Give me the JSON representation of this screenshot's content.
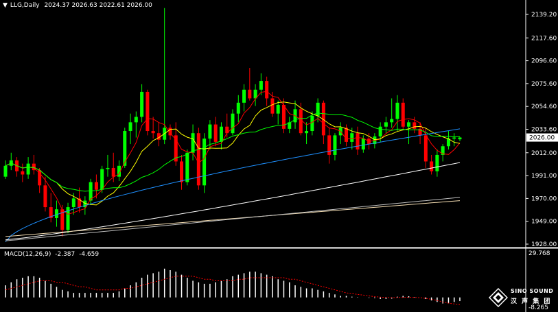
{
  "header": {
    "symbol": "LLG,Daily",
    "ohlc": "2024.37 2026.63 2022.61 2026.00"
  },
  "macd_header": {
    "name": "MACD(12,26,9)",
    "main": "-2.387",
    "signal": "-4.659"
  },
  "price_scale": {
    "ticks": [
      "2139.20",
      "2117.60",
      "2096.60",
      "2075.60",
      "2054.60",
      "2033.60",
      "2012.00",
      "1991.00",
      "1970.00",
      "1949.00",
      "1928.00"
    ],
    "current": "2026.00"
  },
  "macd_scale": {
    "top": "29.768",
    "bottom": "-8.265"
  },
  "logo": {
    "line1": "SINO SOUND",
    "line2": "汉 声 集 团"
  },
  "colors": {
    "up": "#00ff00",
    "down": "#ff0000",
    "ma5": "#ff0000",
    "ma10": "#ffff00",
    "ma20": "#00ff00",
    "ma60": "#1e90ff",
    "ma120": "#ffffff",
    "ma250": "#f5deb3",
    "ma200": "#c0c0c0",
    "background": "#000000"
  },
  "chart_data": {
    "type": "candlestick",
    "ylim": [
      1928,
      2139.2
    ],
    "candles": [
      [
        1990,
        2005,
        1988,
        2000
      ],
      [
        2000,
        2012,
        1996,
        2005
      ],
      [
        2005,
        2008,
        1990,
        1995
      ],
      [
        1995,
        2002,
        1985,
        1992
      ],
      [
        1992,
        2008,
        1988,
        2002
      ],
      [
        2002,
        2010,
        1992,
        1996
      ],
      [
        1996,
        1998,
        1975,
        1982
      ],
      [
        1982,
        1990,
        1958,
        1962
      ],
      [
        1962,
        1975,
        1948,
        1952
      ],
      [
        1952,
        1968,
        1944,
        1960
      ],
      [
        1960,
        1964,
        1935,
        1941
      ],
      [
        1941,
        1966,
        1938,
        1962
      ],
      [
        1962,
        1975,
        1955,
        1970
      ],
      [
        1970,
        1980,
        1957,
        1962
      ],
      [
        1962,
        1972,
        1955,
        1968
      ],
      [
        1968,
        1988,
        1964,
        1985
      ],
      [
        1985,
        1992,
        1970,
        1978
      ],
      [
        1978,
        2000,
        1975,
        1997
      ],
      [
        1997,
        2010,
        1990,
        1998
      ],
      [
        1998,
        2012,
        1985,
        1990
      ],
      [
        1990,
        2005,
        1986,
        2000
      ],
      [
        2000,
        2035,
        1998,
        2032
      ],
      [
        2032,
        2048,
        2020,
        2040
      ],
      [
        2040,
        2050,
        2026,
        2045
      ],
      [
        2045,
        2075,
        2040,
        2068
      ],
      [
        2068,
        2070,
        2028,
        2032
      ],
      [
        2032,
        2045,
        2025,
        2030
      ],
      [
        2030,
        2040,
        2018,
        2024
      ],
      [
        2024,
        2145,
        2020,
        2035
      ],
      [
        2035,
        2038,
        2024,
        2028
      ],
      [
        2028,
        2040,
        2000,
        2004
      ],
      [
        2004,
        2010,
        1978,
        1985
      ],
      [
        1985,
        2015,
        1982,
        2012
      ],
      [
        2012,
        2038,
        2005,
        2030
      ],
      [
        2030,
        2035,
        1978,
        1982
      ],
      [
        1982,
        2030,
        1975,
        2025
      ],
      [
        2025,
        2042,
        2015,
        2038
      ],
      [
        2038,
        2045,
        2018,
        2022
      ],
      [
        2022,
        2040,
        2015,
        2036
      ],
      [
        2036,
        2048,
        2026,
        2030
      ],
      [
        2030,
        2052,
        2028,
        2048
      ],
      [
        2048,
        2065,
        2040,
        2058
      ],
      [
        2058,
        2075,
        2050,
        2070
      ],
      [
        2070,
        2090,
        2060,
        2062
      ],
      [
        2062,
        2075,
        2055,
        2070
      ],
      [
        2070,
        2085,
        2065,
        2078
      ],
      [
        2078,
        2082,
        2055,
        2062
      ],
      [
        2062,
        2068,
        2045,
        2048
      ],
      [
        2048,
        2060,
        2038,
        2056
      ],
      [
        2056,
        2062,
        2030,
        2034
      ],
      [
        2034,
        2045,
        2030,
        2040
      ],
      [
        2040,
        2060,
        2034,
        2052
      ],
      [
        2052,
        2058,
        2028,
        2030
      ],
      [
        2030,
        2040,
        2020,
        2032
      ],
      [
        2032,
        2050,
        2028,
        2046
      ],
      [
        2046,
        2062,
        2040,
        2058
      ],
      [
        2058,
        2060,
        2020,
        2028
      ],
      [
        2028,
        2035,
        2002,
        2010
      ],
      [
        2010,
        2030,
        2005,
        2028
      ],
      [
        2028,
        2040,
        2020,
        2035
      ],
      [
        2035,
        2038,
        2018,
        2022
      ],
      [
        2022,
        2035,
        2015,
        2030
      ],
      [
        2030,
        2036,
        2010,
        2015
      ],
      [
        2015,
        2028,
        2012,
        2025
      ],
      [
        2025,
        2030,
        2015,
        2020
      ],
      [
        2020,
        2030,
        2016,
        2027
      ],
      [
        2027,
        2040,
        2022,
        2036
      ],
      [
        2036,
        2045,
        2030,
        2040
      ],
      [
        2040,
        2062,
        2035,
        2043
      ],
      [
        2043,
        2065,
        2032,
        2058
      ],
      [
        2058,
        2062,
        2034,
        2036
      ],
      [
        2036,
        2042,
        2020,
        2040
      ],
      [
        2040,
        2045,
        2030,
        2034
      ],
      [
        2034,
        2040,
        2020,
        2028
      ],
      [
        2028,
        2035,
        1998,
        2004
      ],
      [
        2004,
        2010,
        1992,
        1995
      ],
      [
        1995,
        2015,
        1990,
        2010
      ],
      [
        2010,
        2020,
        2004,
        2018
      ],
      [
        2018,
        2032,
        2015,
        2025
      ],
      [
        2025,
        2030,
        2018,
        2026
      ],
      [
        2024.37,
        2026.63,
        2022.61,
        2026
      ]
    ],
    "macd_hist_ylim": [
      -8.265,
      29.768
    ],
    "macd_hist": [
      8,
      10,
      12,
      13,
      14,
      14,
      13,
      11,
      9,
      7,
      5,
      4,
      3,
      3,
      3,
      3,
      3,
      3,
      3,
      3,
      4,
      6,
      8,
      10,
      13,
      15,
      16,
      17,
      19,
      18,
      17,
      15,
      13,
      11,
      10,
      9,
      9,
      10,
      11,
      12,
      14,
      15,
      16,
      17,
      17,
      16,
      15,
      14,
      12,
      11,
      10,
      8,
      7,
      6,
      6,
      5,
      4,
      3,
      2,
      1,
      1,
      0.5,
      0.2,
      0,
      -0.3,
      -0.5,
      -1,
      -1,
      -0.8,
      0.5,
      1,
      0.8,
      0.3,
      0,
      -1,
      -2,
      -3,
      -4,
      -4,
      -3,
      -2.4
    ],
    "macd_signal": [
      5,
      6,
      7,
      8,
      9,
      10,
      11,
      11,
      11,
      10,
      10,
      9,
      8,
      7,
      7,
      6,
      5,
      5,
      5,
      5,
      5,
      6,
      6,
      7,
      8,
      9,
      10,
      11,
      12,
      13,
      14,
      14,
      14,
      14,
      13,
      12,
      12,
      11,
      11,
      11,
      11,
      12,
      12,
      13,
      13,
      13,
      13,
      13,
      13,
      13,
      12,
      12,
      11,
      10,
      9,
      8,
      7,
      6,
      5,
      4,
      3,
      2.5,
      2,
      1.5,
      1,
      0.5,
      0.2,
      0,
      -0.2,
      -0.1,
      0,
      0.1,
      0,
      -0.2,
      -0.6,
      -1.2,
      -2,
      -3,
      -3.8,
      -4.3,
      -4.7
    ]
  }
}
